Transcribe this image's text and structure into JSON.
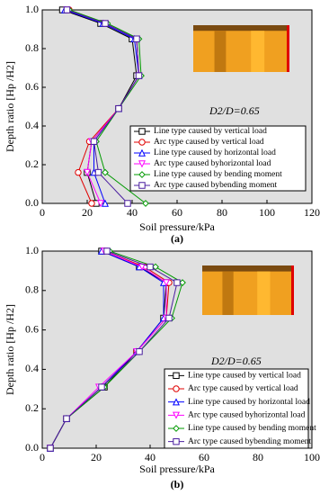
{
  "chart_data": [
    {
      "type": "line",
      "panel_label": "(a)",
      "xlabel": "Soil pressure/kPa",
      "ylabel": "Depth ratio [Hp /H2]",
      "annotation": "D2/D=0.65",
      "xlim": [
        0,
        120
      ],
      "xticks": [
        0,
        20,
        40,
        60,
        80,
        100,
        120
      ],
      "ylim": [
        0,
        1
      ],
      "yticks": [
        {
          "value": 0,
          "label": "0.0"
        },
        0.2,
        0.4,
        0.6,
        0.8,
        {
          "value": 1,
          "label": "1.0"
        }
      ],
      "y": [
        1.0,
        0.93,
        0.85,
        0.66,
        0.49,
        0.32,
        0.16,
        0.0
      ],
      "legend": "lower right",
      "series": [
        {
          "name": "Line type caused by vertical load",
          "color": "#000000",
          "x": [
            9,
            26,
            40,
            42,
            34,
            22,
            20,
            24
          ]
        },
        {
          "name": "Arc type caused by vertical load",
          "color": "#e00000",
          "x": [
            12,
            28,
            42,
            43,
            34,
            21,
            16,
            22
          ]
        },
        {
          "name": "Line type caused by horizontal load",
          "color": "#0000ff",
          "x": [
            10,
            27,
            41,
            43,
            34,
            23,
            23,
            28
          ]
        },
        {
          "name": "Arc type caused byhorizontal load",
          "color": "#ff00ff",
          "x": [
            11,
            28,
            42,
            43,
            34,
            22,
            20,
            26
          ]
        },
        {
          "name": "Line type caused by bending moment",
          "color": "#009900",
          "x": [
            12,
            29,
            43,
            44,
            34,
            24,
            28,
            46
          ]
        },
        {
          "name": "Arc type caused bybending moment",
          "color": "#4b1fa0",
          "x": [
            11,
            28,
            42,
            43,
            34,
            23,
            25,
            38
          ]
        }
      ]
    },
    {
      "type": "line",
      "panel_label": "(b)",
      "xlabel": "Soil pressure/kPa",
      "ylabel": "Depth ratio [Hp /H2]",
      "annotation": "D2/D=0.65",
      "xlim": [
        0,
        100
      ],
      "xticks": [
        0,
        20,
        40,
        60,
        80,
        100
      ],
      "ylim": [
        0,
        1
      ],
      "yticks": [
        {
          "value": 0,
          "label": "0.0"
        },
        0.2,
        0.4,
        0.6,
        0.8,
        {
          "value": 1,
          "label": "1.0"
        }
      ],
      "y": [
        1.0,
        0.92,
        0.84,
        0.66,
        0.49,
        0.31,
        0.15,
        0.0
      ],
      "legend": "lower right",
      "series": [
        {
          "name": "Line type caused by vertical load",
          "color": "#000000",
          "x": [
            22,
            36,
            46,
            45,
            35,
            23,
            9,
            3
          ]
        },
        {
          "name": "Arc type caused by vertical load",
          "color": "#e00000",
          "x": [
            23,
            38,
            47,
            46,
            35,
            22,
            9,
            3
          ]
        },
        {
          "name": "Line type caused by horizontal load",
          "color": "#0000ff",
          "x": [
            22,
            36,
            45,
            45,
            35,
            22,
            9,
            3
          ]
        },
        {
          "name": "Arc type caused byhorizontal load",
          "color": "#ff00ff",
          "x": [
            23,
            37,
            46,
            46,
            35,
            21,
            9,
            3
          ]
        },
        {
          "name": "Line type caused by bending moment",
          "color": "#009900",
          "x": [
            25,
            42,
            52,
            48,
            36,
            23,
            9,
            3
          ]
        },
        {
          "name": "Arc type caused bybending moment",
          "color": "#4b1fa0",
          "x": [
            24,
            40,
            50,
            47,
            36,
            22,
            9,
            3
          ]
        }
      ]
    }
  ]
}
